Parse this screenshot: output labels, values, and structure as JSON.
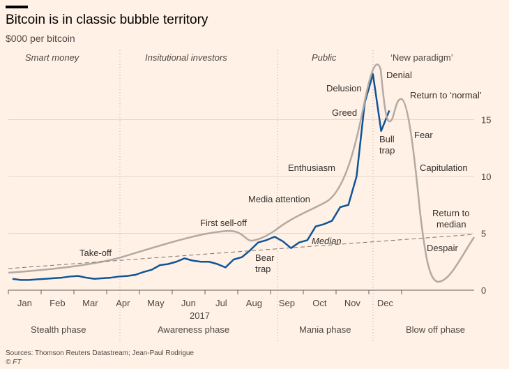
{
  "chart_data": {
    "type": "line",
    "title": "Bitcoin is in classic bubble territory",
    "subtitle": "$000 per bitcoin",
    "categories": [
      null,
      null,
      "Jan",
      null,
      null,
      null,
      "Feb",
      null,
      null,
      null,
      "Mar",
      null,
      null,
      null,
      "Apr",
      null,
      null,
      null,
      "May",
      null,
      null,
      null,
      "Jun",
      null,
      null,
      null,
      "Jul",
      null,
      null,
      null,
      "Aug",
      null,
      null,
      null,
      "Sep",
      null,
      null,
      null,
      "Oct",
      null,
      null,
      null,
      "Nov",
      null,
      null,
      null,
      "Dec"
    ],
    "values": [
      1.0,
      0.9,
      0.9,
      0.95,
      1.0,
      1.05,
      1.1,
      1.2,
      1.25,
      1.1,
      1.0,
      1.05,
      1.1,
      1.2,
      1.25,
      1.35,
      1.6,
      1.8,
      2.2,
      2.3,
      2.5,
      2.8,
      2.6,
      2.5,
      2.5,
      2.3,
      2.0,
      2.7,
      2.9,
      3.5,
      4.2,
      4.4,
      4.7,
      4.3,
      3.7,
      4.2,
      4.4,
      5.6,
      5.8,
      6.1,
      7.3,
      7.5,
      10.0,
      16.5,
      19.0,
      14.0,
      15.8
    ],
    "color": "#0f5499",
    "x_label": "2017",
    "ylim": [
      0,
      20
    ],
    "yticks": [
      0,
      5,
      10,
      15
    ],
    "grid": true,
    "stages": [
      "Smart money",
      "Insitutional investors",
      "Public",
      "‘New paradigm’"
    ],
    "phases": [
      "Stealth phase",
      "Awareness phase",
      "Mania phase",
      "Blow off phase"
    ],
    "annotations": [
      "Take-off",
      "First sell-off",
      [
        "Bear",
        "trap"
      ],
      "Media attention",
      "Enthusiasm",
      "Greed",
      "Delusion",
      "Denial",
      [
        "Bull",
        "trap"
      ],
      "Return to ‘normal’",
      "Fear",
      "Capitulation",
      [
        "Return to",
        "median"
      ],
      "Despair",
      "Median"
    ],
    "source": "Sources: Thomson Reuters Datastream; Jean-Paul Rodrigue",
    "credit": "© FT"
  }
}
